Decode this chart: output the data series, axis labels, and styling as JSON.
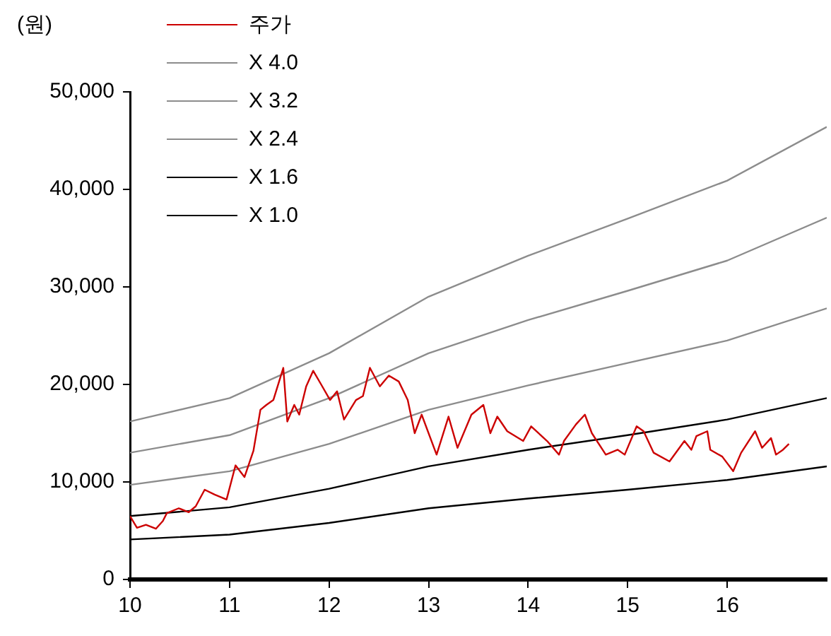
{
  "chart_data": {
    "type": "line",
    "ylabel": "(원)",
    "xlim": [
      10,
      17
    ],
    "xticks": [
      10,
      11,
      12,
      13,
      14,
      15,
      16
    ],
    "ylim": [
      0,
      50000
    ],
    "yticks": [
      0,
      {
        "value": 10000,
        "label": "10,000"
      },
      {
        "value": 20000,
        "label": "20,000"
      },
      {
        "value": 30000,
        "label": "30,000"
      },
      {
        "value": 40000,
        "label": "40,000"
      },
      {
        "value": 50000,
        "label": "50,000"
      }
    ],
    "grid": false,
    "legend": "top left",
    "series": [
      {
        "name": "주가",
        "color": "#cc0000",
        "x": [
          10.0,
          10.07,
          10.16,
          10.26,
          10.33,
          10.37,
          10.49,
          10.59,
          10.66,
          10.75,
          10.85,
          10.97,
          11.06,
          11.15,
          11.24,
          11.31,
          11.37,
          11.44,
          11.54,
          11.58,
          11.65,
          11.7,
          11.77,
          11.84,
          11.92,
          12.01,
          12.08,
          12.15,
          12.27,
          12.34,
          12.41,
          12.51,
          12.6,
          12.7,
          12.79,
          12.86,
          12.93,
          13.08,
          13.2,
          13.29,
          13.43,
          13.55,
          13.62,
          13.69,
          13.79,
          13.95,
          14.03,
          14.19,
          14.31,
          14.36,
          14.48,
          14.57,
          14.64,
          14.78,
          14.9,
          14.97,
          15.09,
          15.16,
          15.26,
          15.42,
          15.57,
          15.64,
          15.69,
          15.8,
          15.83,
          15.95,
          16.06,
          16.14,
          16.28,
          16.35,
          16.44,
          16.49,
          16.56,
          16.62
        ],
        "values": [
          6500,
          5300,
          5600,
          5200,
          6000,
          6800,
          7300,
          6900,
          7500,
          9200,
          8700,
          8200,
          11700,
          10500,
          13200,
          17400,
          17900,
          18400,
          21700,
          16200,
          17900,
          16900,
          19800,
          21400,
          20000,
          18400,
          19300,
          16400,
          18400,
          18800,
          21700,
          19800,
          20900,
          20300,
          18400,
          15000,
          16900,
          12800,
          16700,
          13500,
          16900,
          17900,
          15000,
          16700,
          15200,
          14200,
          15700,
          14200,
          12800,
          14200,
          15900,
          16900,
          15000,
          12800,
          13300,
          12800,
          15700,
          15200,
          13000,
          12100,
          14200,
          13300,
          14700,
          15200,
          13300,
          12600,
          11100,
          13000,
          15200,
          13500,
          14500,
          12800,
          13300,
          13900
        ]
      },
      {
        "name": "X 4.0",
        "color": "#8c8c8c",
        "x": [
          10,
          11,
          12,
          13,
          14,
          15,
          16,
          17
        ],
        "values": [
          16200,
          18600,
          23200,
          29000,
          33200,
          37000,
          40900,
          46400
        ]
      },
      {
        "name": "X 3.2",
        "color": "#8c8c8c",
        "x": [
          10,
          11,
          12,
          13,
          14,
          15,
          16,
          17
        ],
        "values": [
          13000,
          14800,
          18600,
          23200,
          26600,
          29600,
          32700,
          37100
        ]
      },
      {
        "name": "X 2.4",
        "color": "#8c8c8c",
        "x": [
          10,
          11,
          12,
          13,
          14,
          15,
          16,
          17
        ],
        "values": [
          9700,
          11100,
          13900,
          17400,
          19900,
          22200,
          24500,
          27800
        ]
      },
      {
        "name": "X 1.6",
        "color": "#000000",
        "x": [
          10,
          11,
          12,
          13,
          14,
          15,
          16,
          17
        ],
        "values": [
          6500,
          7400,
          9300,
          11600,
          13300,
          14800,
          16400,
          18600
        ]
      },
      {
        "name": "X 1.0",
        "color": "#000000",
        "x": [
          10,
          11,
          12,
          13,
          14,
          15,
          16,
          17
        ],
        "values": [
          4100,
          4600,
          5800,
          7300,
          8300,
          9200,
          10200,
          11600
        ]
      }
    ]
  }
}
